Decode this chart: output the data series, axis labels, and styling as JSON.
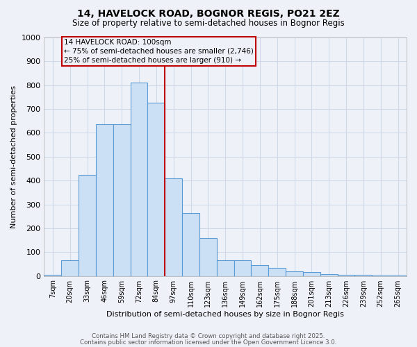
{
  "title_line1": "14, HAVELOCK ROAD, BOGNOR REGIS, PO21 2EZ",
  "title_line2": "Size of property relative to semi-detached houses in Bognor Regis",
  "xlabel": "Distribution of semi-detached houses by size in Bognor Regis",
  "ylabel": "Number of semi-detached properties",
  "categories": [
    "7sqm",
    "20sqm",
    "33sqm",
    "46sqm",
    "59sqm",
    "72sqm",
    "84sqm",
    "97sqm",
    "110sqm",
    "123sqm",
    "136sqm",
    "149sqm",
    "162sqm",
    "175sqm",
    "188sqm",
    "201sqm",
    "213sqm",
    "226sqm",
    "239sqm",
    "252sqm",
    "265sqm"
  ],
  "values": [
    5,
    65,
    425,
    635,
    635,
    810,
    725,
    410,
    265,
    160,
    65,
    65,
    45,
    35,
    20,
    15,
    8,
    5,
    5,
    2,
    2
  ],
  "bar_color": "#cce0f5",
  "bar_edge_color": "#5b9bd5",
  "vline_x": 6.5,
  "vline_color": "#c00000",
  "ylim": [
    0,
    1000
  ],
  "yticks": [
    0,
    100,
    200,
    300,
    400,
    500,
    600,
    700,
    800,
    900,
    1000
  ],
  "grid_color": "#d0d8e8",
  "bg_color": "#eef2f8",
  "annotation_text": "14 HAVELOCK ROAD: 100sqm\n← 75% of semi-detached houses are smaller (2,746)\n25% of semi-detached houses are larger (910) →",
  "annotation_box_color": "#c00000",
  "footer_line1": "Contains HM Land Registry data © Crown copyright and database right 2025.",
  "footer_line2": "Contains public sector information licensed under the Open Government Licence 3.0."
}
